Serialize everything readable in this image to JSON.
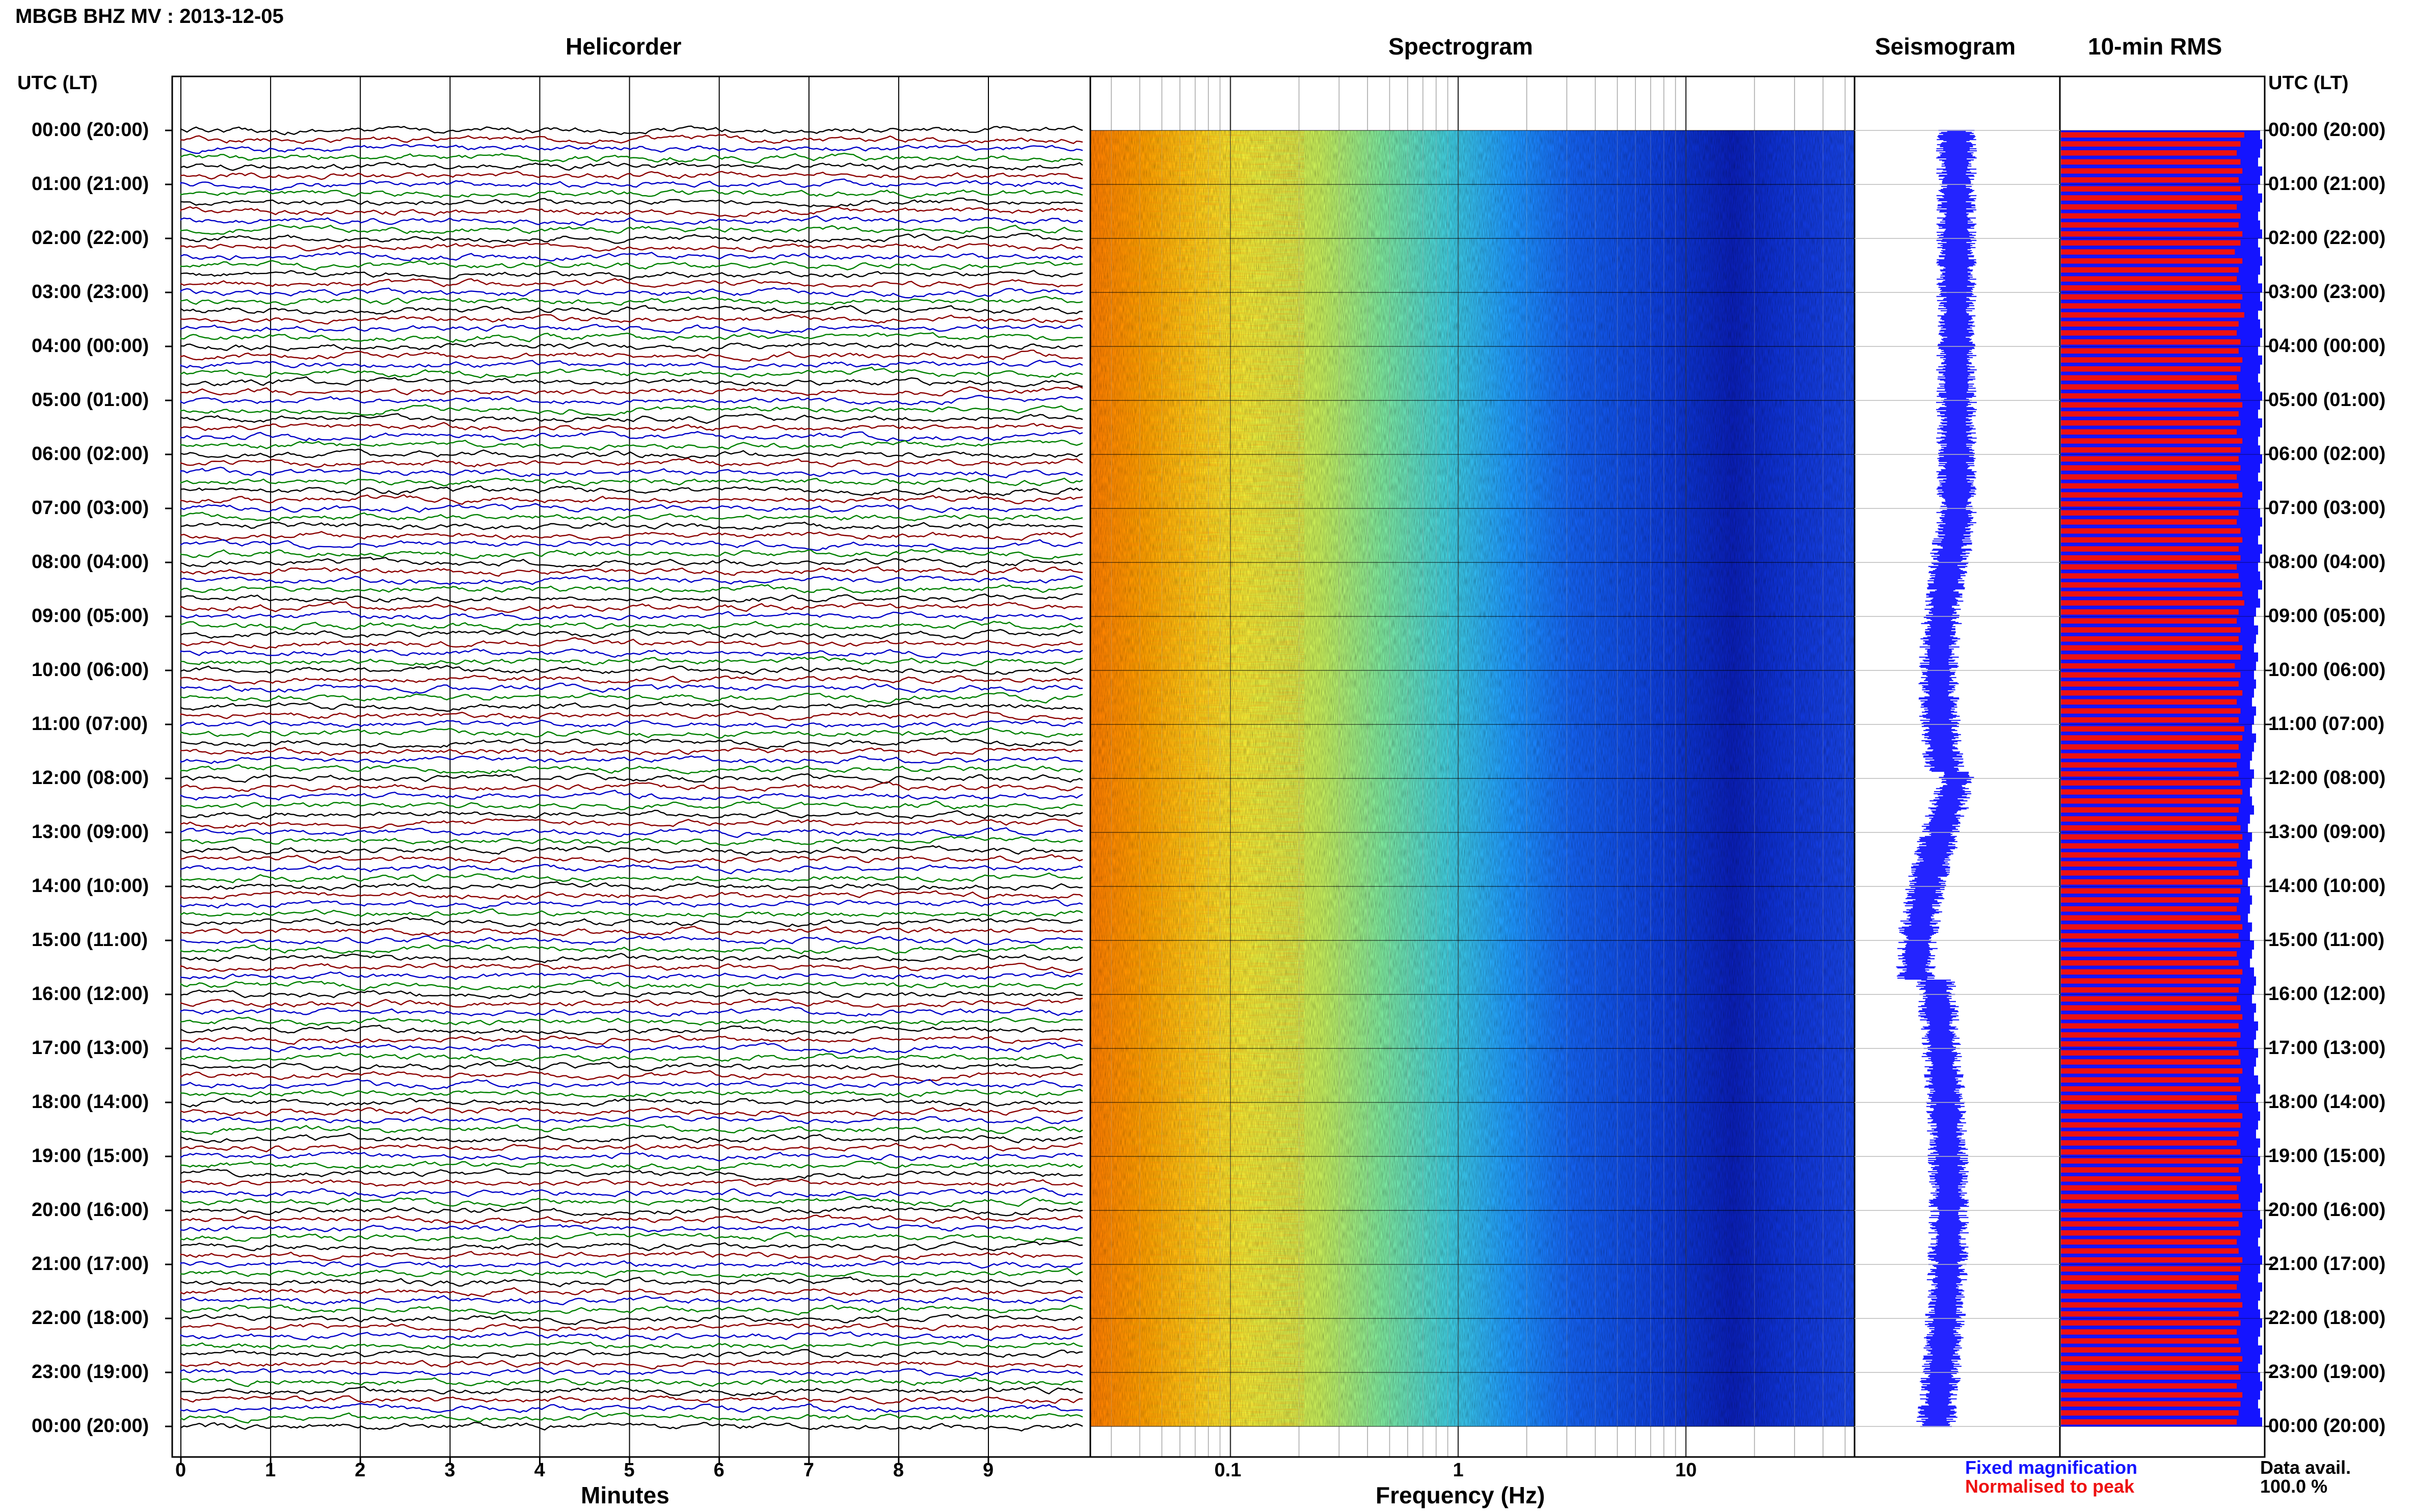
{
  "header": {
    "title": "MBGB BHZ MV : 2013-12-05",
    "utc_header_left": "UTC (LT)",
    "utc_header_right": "UTC (LT)"
  },
  "panels": {
    "helicorder": "Helicorder",
    "spectrogram": "Spectrogram",
    "seismogram": "Seismogram",
    "rms": "10-min RMS"
  },
  "time_labels": [
    "00:00 (20:00)",
    "01:00 (21:00)",
    "02:00 (22:00)",
    "03:00 (23:00)",
    "04:00 (00:00)",
    "05:00 (01:00)",
    "06:00 (02:00)",
    "07:00 (03:00)",
    "08:00 (04:00)",
    "09:00 (05:00)",
    "10:00 (06:00)",
    "11:00 (07:00)",
    "12:00 (08:00)",
    "13:00 (09:00)",
    "14:00 (10:00)",
    "15:00 (11:00)",
    "16:00 (12:00)",
    "17:00 (13:00)",
    "18:00 (14:00)",
    "19:00 (15:00)",
    "20:00 (16:00)",
    "21:00 (17:00)",
    "22:00 (18:00)",
    "23:00 (19:00)",
    "00:00 (20:00)"
  ],
  "helicorder_axis": {
    "ticks": [
      "0",
      "1",
      "2",
      "3",
      "4",
      "5",
      "6",
      "7",
      "8",
      "9"
    ],
    "label": "Minutes"
  },
  "spectrogram_axis": {
    "ticks": [
      "0.1",
      "1",
      "10"
    ],
    "label": "Frequency (Hz)",
    "scale": "log"
  },
  "legend": {
    "fixed": "Fixed magnification",
    "fixed_color": "#1414ff",
    "normalised": "Normalised to peak",
    "normalised_color": "#ee1111",
    "data_avail_label": "Data avail.",
    "data_avail_value": "100.0 %"
  },
  "trace_colors": [
    "#000000",
    "#8b0000",
    "#0000c8",
    "#008000"
  ],
  "chart_data": {
    "type": "heatmap",
    "title": "MBGB BHZ MV : 2013-12-05",
    "panels": [
      "Helicorder",
      "Spectrogram",
      "Seismogram",
      "10-min RMS"
    ],
    "rows_per_hour": 6,
    "row_minutes": 10,
    "x_helicorder": {
      "label": "Minutes",
      "range": [
        0,
        10
      ]
    },
    "x_spectrogram": {
      "label": "Frequency (Hz)",
      "range": [
        0.02,
        50
      ],
      "scale": "log"
    },
    "rms_normalised": [
      0.97,
      0.95,
      0.93,
      0.95,
      0.96,
      0.94,
      0.95,
      0.96,
      0.93,
      0.95,
      0.94,
      0.96,
      0.95,
      0.92,
      0.96,
      0.94,
      0.93,
      0.95,
      0.96,
      0.95,
      0.97,
      0.94,
      0.93,
      0.95,
      0.94,
      0.96,
      0.95,
      0.93,
      0.94,
      0.95,
      0.96,
      0.94,
      0.95,
      0.93,
      0.96,
      0.95,
      0.94,
      0.95,
      0.93,
      0.94,
      0.96,
      0.95,
      0.94,
      0.93,
      0.95,
      0.96,
      0.94,
      0.95,
      0.93,
      0.94,
      0.95,
      0.96,
      0.97,
      0.94,
      0.93,
      0.95,
      0.94,
      0.96,
      0.95,
      0.92,
      0.95,
      0.94,
      0.96,
      0.93,
      0.95,
      0.94,
      0.97,
      0.96,
      0.94,
      0.95,
      0.93,
      0.94,
      0.95,
      0.96,
      0.95,
      0.94,
      0.93,
      0.95,
      0.96,
      0.94,
      0.95,
      0.93,
      0.94,
      0.96,
      0.95,
      0.94,
      0.93,
      0.95,
      0.96,
      0.94,
      0.95,
      0.93,
      0.94,
      0.96,
      0.95,
      0.94,
      0.93,
      0.95,
      0.96,
      0.94,
      0.95,
      0.93,
      0.94,
      0.95,
      0.96,
      0.94,
      0.95,
      0.93,
      0.94,
      0.96,
      0.95,
      0.94,
      0.93,
      0.95,
      0.96,
      0.94,
      0.95,
      0.93,
      0.94,
      0.95,
      0.96,
      0.94,
      0.95,
      0.93,
      0.94,
      0.96,
      0.95,
      0.94,
      0.93,
      0.95,
      0.96,
      0.94,
      0.95,
      0.93,
      0.94,
      0.95,
      0.96,
      0.94,
      0.95,
      0.93,
      0.96,
      0.95,
      0.94,
      0.93
    ],
    "rms_fixed": [
      0.98,
      0.99,
      0.98,
      0.97,
      0.99,
      0.98,
      0.97,
      0.99,
      0.98,
      0.97,
      0.98,
      0.99,
      0.97,
      0.98,
      0.99,
      0.98,
      0.97,
      0.99,
      0.98,
      0.99,
      0.97,
      0.98,
      0.99,
      0.98,
      0.97,
      0.99,
      0.98,
      0.97,
      0.98,
      0.99,
      0.98,
      0.97,
      0.99,
      0.98,
      0.97,
      0.98,
      0.99,
      0.98,
      0.97,
      0.99,
      0.98,
      0.97,
      0.98,
      0.99,
      0.98,
      0.97,
      0.99,
      0.98,
      0.97,
      0.98,
      0.99,
      0.97,
      0.98,
      0.96,
      0.95,
      0.97,
      0.96,
      0.95,
      0.97,
      0.96,
      0.95,
      0.96,
      0.95,
      0.94,
      0.96,
      0.95,
      0.94,
      0.96,
      0.95,
      0.94,
      0.93,
      0.95,
      0.94,
      0.93,
      0.94,
      0.95,
      0.93,
      0.92,
      0.94,
      0.93,
      0.92,
      0.94,
      0.93,
      0.92,
      0.93,
      0.94,
      0.93,
      0.92,
      0.94,
      0.93,
      0.95,
      0.94,
      0.93,
      0.95,
      0.96,
      0.95,
      0.94,
      0.96,
      0.95,
      0.97,
      0.96,
      0.95,
      0.97,
      0.96,
      0.95,
      0.97,
      0.98,
      0.96,
      0.97,
      0.98,
      0.97,
      0.96,
      0.98,
      0.97,
      0.98,
      0.97,
      0.98,
      0.99,
      0.98,
      0.97,
      0.98,
      0.99,
      0.98,
      0.97,
      0.98,
      0.99,
      0.98,
      0.97,
      0.99,
      0.98,
      0.97,
      0.98,
      0.99,
      0.98,
      0.97,
      0.99,
      0.98,
      0.97,
      0.98,
      0.99,
      0.98,
      0.97,
      0.98,
      0.99
    ]
  }
}
